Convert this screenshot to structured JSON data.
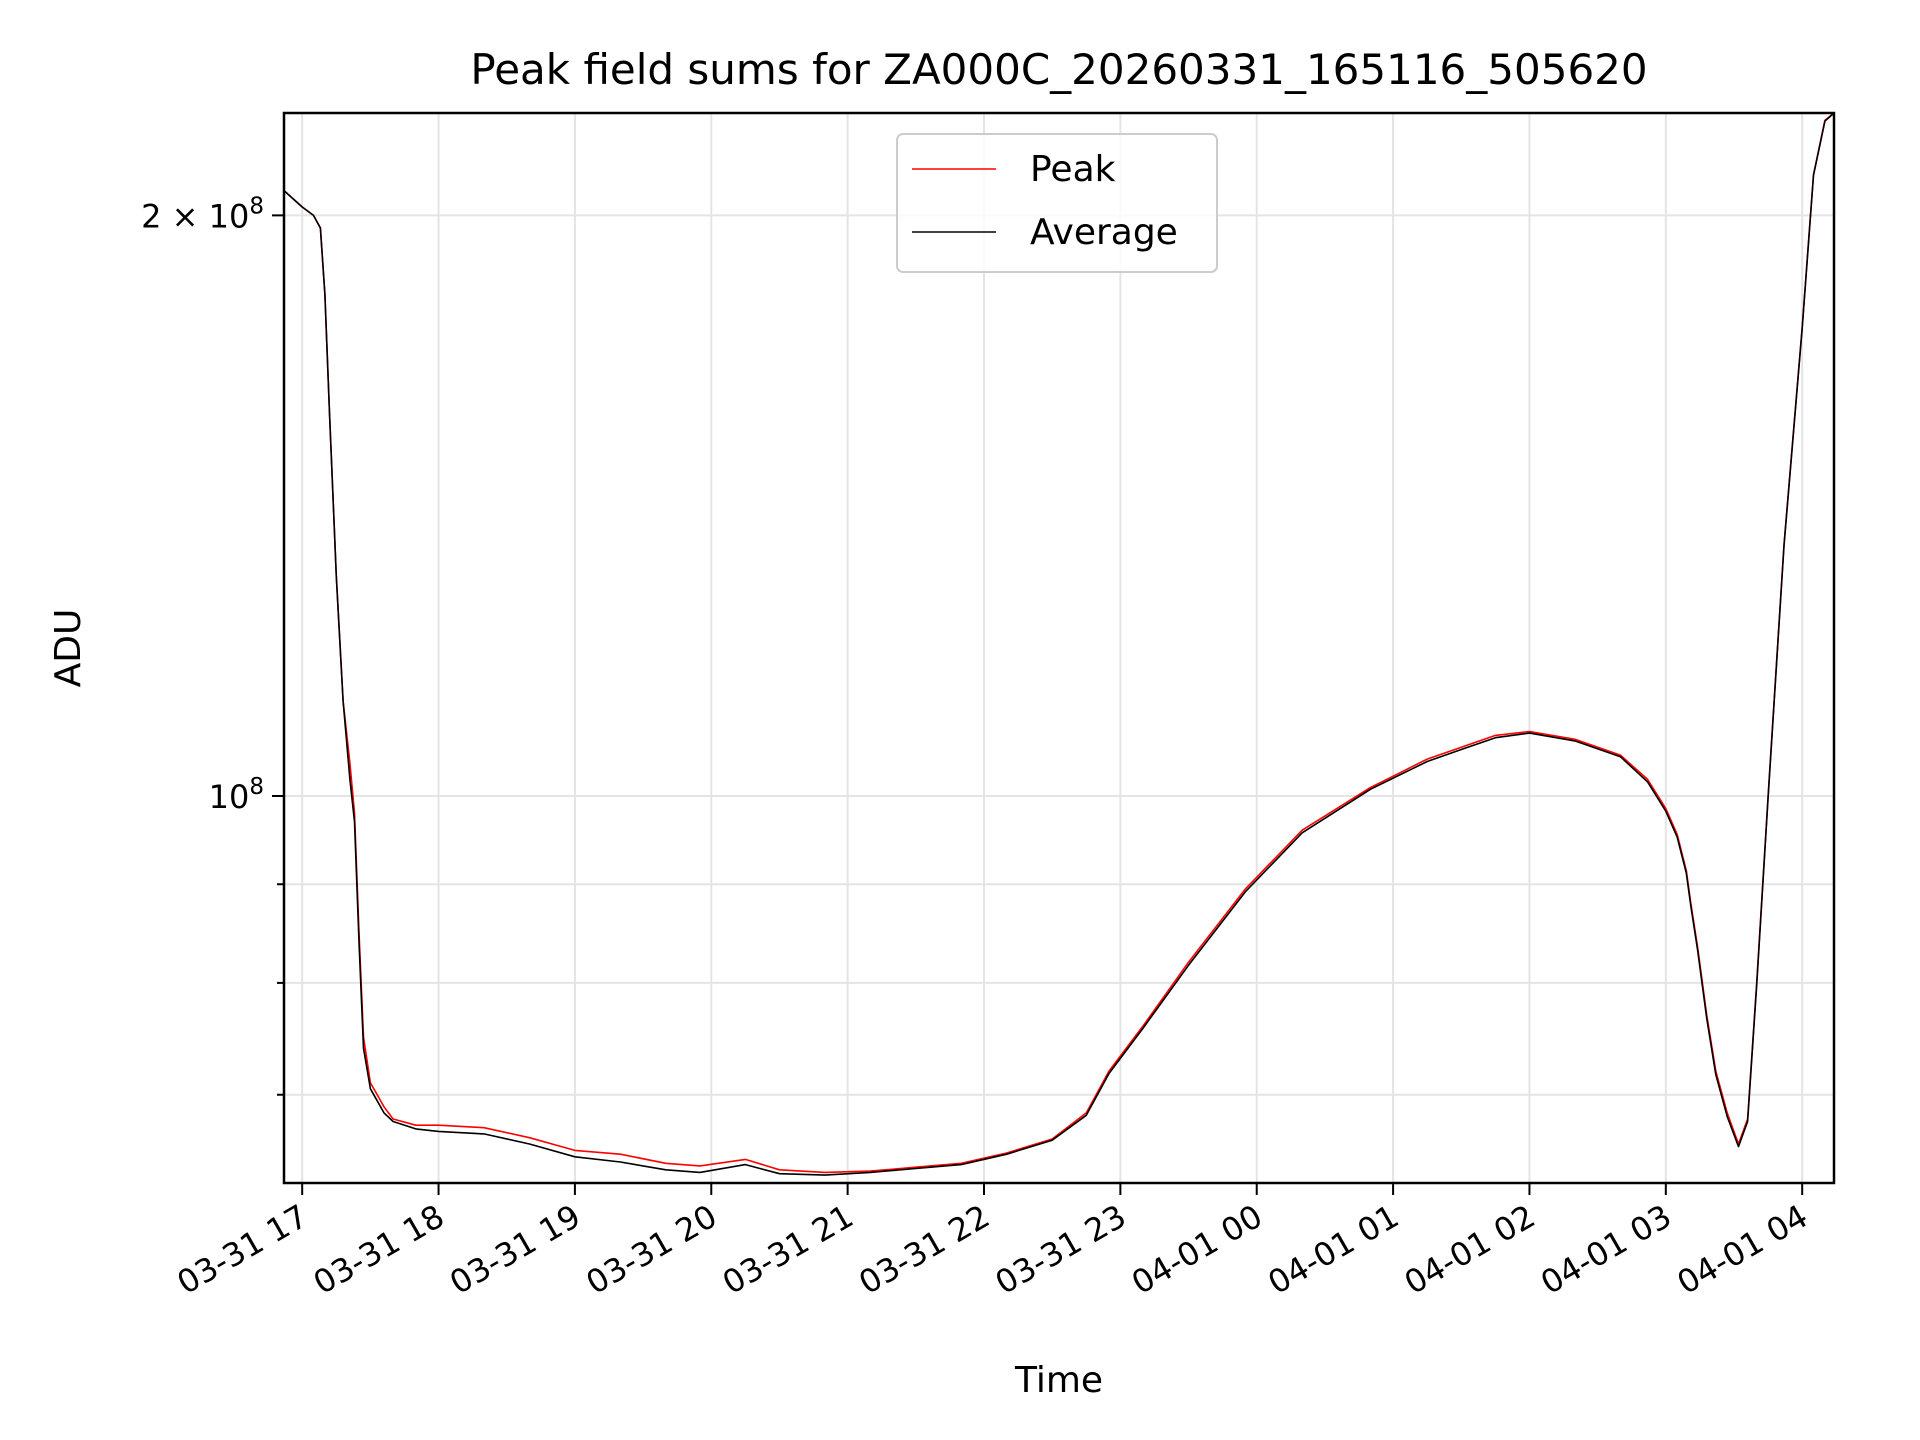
{
  "title": "Peak field sums for ZA000C_20260331_165116_505620",
  "chart_data": {
    "type": "line",
    "title": "Peak field sums for ZA000C_20260331_165116_505620",
    "xlabel": "Time",
    "ylabel": "ADU",
    "x_range": [
      "2026-03-31 16:52",
      "2026-04-01 04:14"
    ],
    "ylim": [
      63000000,
      226000000
    ],
    "yscale": "log",
    "grid": true,
    "legend_position": "upper center",
    "x_ticks": [
      "03-31 17",
      "03-31 18",
      "03-31 19",
      "03-31 20",
      "03-31 21",
      "03-31 22",
      "03-31 23",
      "04-01 00",
      "04-01 01",
      "04-01 02",
      "04-01 03",
      "04-01 04"
    ],
    "x_tick_times": [
      "2026-03-31 17:00",
      "2026-03-31 18:00",
      "2026-03-31 19:00",
      "2026-03-31 20:00",
      "2026-03-31 21:00",
      "2026-03-31 22:00",
      "2026-03-31 23:00",
      "2026-04-01 00:00",
      "2026-04-01 01:00",
      "2026-04-01 02:00",
      "2026-04-01 03:00",
      "2026-04-01 04:00"
    ],
    "y_major_ticks": [
      {
        "value": 200000000,
        "label_base": "2 × 10",
        "label_exp": "8"
      },
      {
        "value": 100000000,
        "label_base": "10",
        "label_exp": "8"
      }
    ],
    "y_minor_ticks": [
      70000000,
      80000000,
      90000000
    ],
    "x": [
      "2026-03-31 16:52",
      "2026-03-31 17:00",
      "2026-03-31 17:05",
      "2026-03-31 17:08",
      "2026-03-31 17:10",
      "2026-03-31 17:12",
      "2026-03-31 17:15",
      "2026-03-31 17:18",
      "2026-03-31 17:21",
      "2026-03-31 17:23",
      "2026-03-31 17:25",
      "2026-03-31 17:27",
      "2026-03-31 17:30",
      "2026-03-31 17:33",
      "2026-03-31 17:36",
      "2026-03-31 17:40",
      "2026-03-31 17:50",
      "2026-03-31 18:00",
      "2026-03-31 18:20",
      "2026-03-31 18:40",
      "2026-03-31 19:00",
      "2026-03-31 19:20",
      "2026-03-31 19:40",
      "2026-03-31 19:55",
      "2026-03-31 20:15",
      "2026-03-31 20:30",
      "2026-03-31 20:50",
      "2026-03-31 21:10",
      "2026-03-31 21:30",
      "2026-03-31 21:50",
      "2026-03-31 22:10",
      "2026-03-31 22:30",
      "2026-03-31 22:45",
      "2026-03-31 22:55",
      "2026-03-31 23:10",
      "2026-03-31 23:30",
      "2026-03-31 23:55",
      "2026-04-01 00:20",
      "2026-04-01 00:50",
      "2026-04-01 01:15",
      "2026-04-01 01:30",
      "2026-04-01 01:45",
      "2026-04-01 02:00",
      "2026-04-01 02:20",
      "2026-04-01 02:40",
      "2026-04-01 02:52",
      "2026-04-01 03:00",
      "2026-04-01 03:05",
      "2026-04-01 03:07",
      "2026-04-01 03:09",
      "2026-04-01 03:11",
      "2026-04-01 03:14",
      "2026-04-01 03:18",
      "2026-04-01 03:22",
      "2026-04-01 03:27",
      "2026-04-01 03:32",
      "2026-04-01 03:36",
      "2026-04-01 03:40",
      "2026-04-01 03:45",
      "2026-04-01 03:52",
      "2026-04-01 04:00",
      "2026-04-01 04:05",
      "2026-04-01 04:10",
      "2026-04-01 04:14"
    ],
    "series": [
      {
        "name": "Peak",
        "color": "#ff0000",
        "values": [
          206000000,
          202000000,
          200000000,
          197000000,
          182000000,
          158000000,
          130000000,
          112000000,
          104000000,
          98000000,
          85000000,
          75000000,
          71000000,
          70000000,
          69000000,
          68000000,
          67500000,
          67500000,
          67300000,
          66500000,
          65500000,
          65200000,
          64500000,
          64300000,
          64800000,
          64000000,
          63800000,
          63900000,
          64200000,
          64500000,
          65300000,
          66400000,
          68500000,
          72000000,
          76000000,
          82000000,
          89500000,
          96000000,
          101000000,
          104500000,
          106000000,
          107500000,
          108000000,
          107000000,
          105000000,
          102000000,
          98500000,
          95500000,
          93500000,
          91500000,
          88000000,
          83500000,
          77000000,
          72000000,
          68500000,
          66000000,
          68000000,
          80000000,
          100000000,
          135000000,
          175000000,
          210000000,
          224000000,
          226000000
        ]
      },
      {
        "name": "Average",
        "color": "#000000",
        "values": [
          206000000,
          202000000,
          200000000,
          197000000,
          182000000,
          158000000,
          130000000,
          112000000,
          102000000,
          97000000,
          84000000,
          74000000,
          70500000,
          69500000,
          68500000,
          67800000,
          67200000,
          67000000,
          66800000,
          66000000,
          65000000,
          64600000,
          64000000,
          63800000,
          64400000,
          63700000,
          63600000,
          63800000,
          64100000,
          64400000,
          65200000,
          66300000,
          68300000,
          71800000,
          75800000,
          81700000,
          89200000,
          95700000,
          100800000,
          104200000,
          105700000,
          107200000,
          107800000,
          106800000,
          104800000,
          101700000,
          98200000,
          95200000,
          93200000,
          91200000,
          87700000,
          83200000,
          76700000,
          71700000,
          68200000,
          65800000,
          67800000,
          79800000,
          99800000,
          134800000,
          174800000,
          209800000,
          223800000,
          226000000
        ]
      }
    ]
  }
}
